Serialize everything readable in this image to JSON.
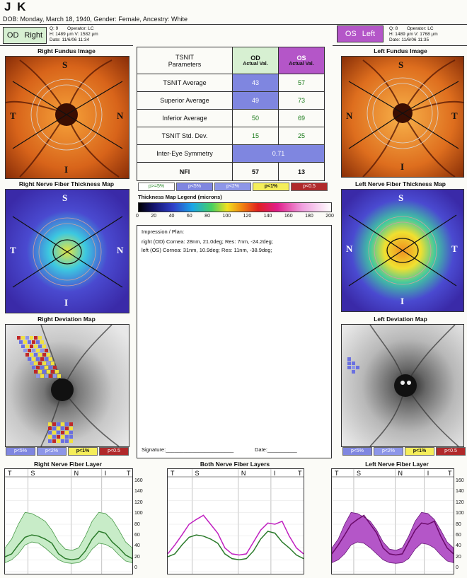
{
  "patient": {
    "name": "J      K",
    "dob_line": "DOB: Monday, March 18, 1940, Gender: Female, Ancestry: White"
  },
  "od": {
    "label": "OD",
    "side": "Right",
    "q": "Q: 9",
    "operator": "Operator: LC",
    "hv": "H: 1489 µm  V: 1582 µm",
    "date": "Date: 11/6/06 11:34"
  },
  "os": {
    "label": "OS",
    "side": "Left",
    "q": "Q: 8",
    "operator": "Operator: LC",
    "hv": "H: 1489 µm  V: 1768 µm",
    "date": "Date: 11/6/06 11:35"
  },
  "titles": {
    "right_fundus": "Right Fundus Image",
    "left_fundus": "Left Fundus Image",
    "right_nft": "Right Nerve Fiber Thickness Map",
    "left_nft": "Left Nerve Fiber Thickness Map",
    "right_dev": "Right Deviation Map",
    "left_dev": "Left Deviation Map",
    "right_layer": "Right Nerve Fiber Layer",
    "both_layer": "Both Nerve Fiber Layers",
    "left_layer": "Left Nerve Fiber Layer"
  },
  "quadrant_letters": {
    "s": "S",
    "t": "T",
    "n": "N",
    "i": "I"
  },
  "tsnit": {
    "header_param_1": "TSNIT",
    "header_param_2": "Parameters",
    "od_head": "OD",
    "os_head": "OS",
    "actual": "Actual Val.",
    "rows": [
      {
        "name": "TSNIT Average",
        "od": "43",
        "os": "57"
      },
      {
        "name": "Superior Average",
        "od": "49",
        "os": "73"
      },
      {
        "name": "Inferior Average",
        "od": "50",
        "os": "69"
      },
      {
        "name": "TSNIT Std. Dev.",
        "od": "15",
        "os": "25"
      }
    ],
    "symmetry_name": "Inter-Eye Symmetry",
    "symmetry_val": "0.71",
    "nfi_name": "NFI",
    "nfi_od": "57",
    "nfi_os": "13"
  },
  "prob_legend": [
    "p>=5%",
    "p<5%",
    "p<2%",
    "p<1%",
    "p<0.5"
  ],
  "dev_legend": [
    "p<5%",
    "p<2%",
    "p<1%",
    "p<0.5"
  ],
  "thickness_legend": {
    "title": "Thickness Map Legend (microns)",
    "ticks": [
      "0",
      "20",
      "40",
      "60",
      "80",
      "100",
      "120",
      "140",
      "160",
      "180",
      "200"
    ]
  },
  "impression": {
    "title": "Impression / Plan:",
    "line1": "right (OD) Cornea: 28nm, 21.0deg; Res: 7nm, -24.2deg;",
    "line2": "left (OS) Cornea: 31nm, 10.9deg; Res: 11nm, -38.9deg;",
    "signature": "Signature:_______________________",
    "date": "Date:__________"
  },
  "graph_axis": {
    "labels": [
      "T",
      "S",
      "N",
      "I",
      "T"
    ],
    "y_ticks": [
      "160",
      "140",
      "120",
      "100",
      "80",
      "60",
      "40",
      "20",
      "0"
    ]
  },
  "colors": {
    "od_green": "#d7f0d2",
    "os_purple": "#b456c8",
    "table_blue": "#7f86e0",
    "table_purple": "#b45ad0"
  }
}
